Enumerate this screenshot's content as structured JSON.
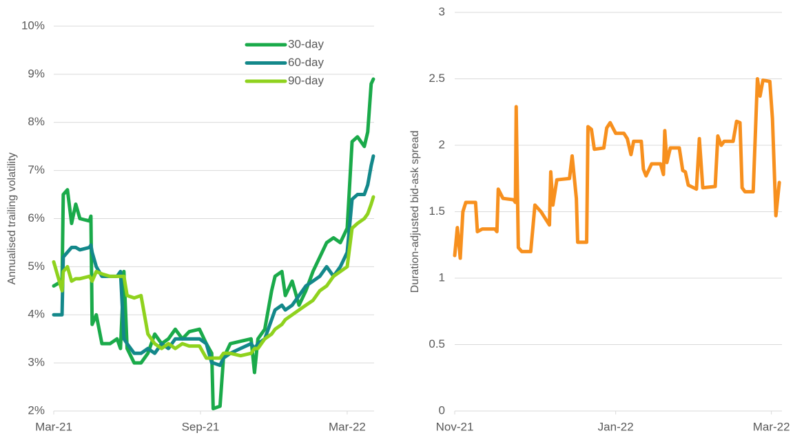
{
  "chart_data": [
    {
      "type": "line",
      "ylabel": "Annualised trailing volatility",
      "x": [
        0,
        0.34,
        0.39,
        0.56,
        0.73,
        0.9,
        1.07,
        1.46,
        1.52,
        1.57,
        1.74,
        1.97,
        2.3,
        2.59,
        2.73,
        2.87,
        3.0,
        3.29,
        3.57,
        3.85,
        4.13,
        4.41,
        4.69,
        4.97,
        5.26,
        5.54,
        5.96,
        6.24,
        6.46,
        6.52,
        6.8,
        6.94,
        7.22,
        7.64,
        8.07,
        8.21,
        8.35,
        8.63,
        8.91,
        9.05,
        9.33,
        9.47,
        9.75,
        10.03,
        10.31,
        10.6,
        10.88,
        11.16,
        11.44,
        11.72,
        12.0,
        12.2,
        12.42,
        12.7,
        12.84,
        12.98,
        13.07
      ],
      "series": [
        {
          "name": "30-day",
          "color": "#1aaa4a",
          "values": [
            4.6,
            4.7,
            6.5,
            6.6,
            5.9,
            6.3,
            6.0,
            5.95,
            6.05,
            3.8,
            4.0,
            3.4,
            3.4,
            3.5,
            3.3,
            4.9,
            3.3,
            3.0,
            3.0,
            3.2,
            3.6,
            3.4,
            3.5,
            3.7,
            3.5,
            3.65,
            3.7,
            3.4,
            3.2,
            2.05,
            2.1,
            3.1,
            3.4,
            3.45,
            3.5,
            2.8,
            3.5,
            3.7,
            4.5,
            4.8,
            4.9,
            4.4,
            4.7,
            4.2,
            4.5,
            4.9,
            5.2,
            5.5,
            5.6,
            5.5,
            5.8,
            7.6,
            7.7,
            7.5,
            7.8,
            8.8,
            8.9
          ]
        },
        {
          "name": "60-day",
          "color": "#13888a",
          "values": [
            4.0,
            4.0,
            5.2,
            5.3,
            5.4,
            5.4,
            5.35,
            5.4,
            5.45,
            5.3,
            5.0,
            4.8,
            4.8,
            4.8,
            4.9,
            3.5,
            3.4,
            3.2,
            3.2,
            3.3,
            3.2,
            3.4,
            3.3,
            3.5,
            3.5,
            3.5,
            3.5,
            3.4,
            3.0,
            3.0,
            2.95,
            3.1,
            3.2,
            3.3,
            3.4,
            3.3,
            3.4,
            3.5,
            3.9,
            4.1,
            4.2,
            4.1,
            4.2,
            4.4,
            4.6,
            4.7,
            4.8,
            5.0,
            4.8,
            5.0,
            5.3,
            6.4,
            6.5,
            6.5,
            6.7,
            7.1,
            7.3
          ]
        },
        {
          "name": "90-day",
          "color": "#8fd21e",
          "values": [
            5.1,
            4.5,
            4.9,
            5.0,
            4.7,
            4.75,
            4.75,
            4.8,
            4.75,
            4.7,
            4.9,
            4.85,
            4.8,
            4.8,
            4.8,
            4.8,
            4.4,
            4.35,
            4.4,
            3.6,
            3.4,
            3.3,
            3.4,
            3.3,
            3.4,
            3.35,
            3.35,
            3.1,
            3.1,
            3.1,
            3.1,
            3.2,
            3.2,
            3.15,
            3.2,
            3.3,
            3.3,
            3.5,
            3.6,
            3.7,
            3.8,
            3.9,
            4.0,
            4.1,
            4.2,
            4.3,
            4.5,
            4.6,
            4.8,
            4.9,
            5.0,
            5.8,
            5.9,
            6.0,
            6.1,
            6.3,
            6.45
          ]
        }
      ],
      "xlim": [
        0,
        13.1
      ],
      "xticks": [
        {
          "value": 0,
          "label": "Mar-21"
        },
        {
          "value": 6,
          "label": "Sep-21"
        },
        {
          "value": 12,
          "label": "Mar-22"
        }
      ],
      "ylim": [
        2,
        10
      ],
      "yticks": [
        {
          "value": 2,
          "label": "2%"
        },
        {
          "value": 3,
          "label": "3%"
        },
        {
          "value": 4,
          "label": "4%"
        },
        {
          "value": 5,
          "label": "5%"
        },
        {
          "value": 6,
          "label": "6%"
        },
        {
          "value": 7,
          "label": "7%"
        },
        {
          "value": 8,
          "label": "8%"
        },
        {
          "value": 9,
          "label": "9%"
        },
        {
          "value": 10,
          "label": "10%"
        }
      ],
      "grid": true,
      "legend": "upper right"
    },
    {
      "type": "line",
      "ylabel": "Duration-adjusted bid-ask spread",
      "x": [
        0,
        1.0,
        2.1,
        3.1,
        4.2,
        7.9,
        8.6,
        10.5,
        15.2,
        16.0,
        16.5,
        18.3,
        22.3,
        23.0,
        23.3,
        24.1,
        25.4,
        28.8,
        30.4,
        32.7,
        35.9,
        36.4,
        37.2,
        38.7,
        43.5,
        44.5,
        46.1,
        46.6,
        50.0,
        50.5,
        51.8,
        52.9,
        56.5,
        57.6,
        58.9,
        61.0,
        64.1,
        65.4,
        66.8,
        67.8,
        70.7,
        71.5,
        72.5,
        74.6,
        78.0,
        79.1,
        79.6,
        80.4,
        81.7,
        85.1,
        86.4,
        87.4,
        88.5,
        91.6,
        92.7,
        94.0,
        98.7,
        99.7,
        101.0,
        102.1,
        105.5,
        106.8,
        108.1,
        108.9,
        110.0,
        113.1,
        114.7,
        115.7,
        116.8,
        119.4,
        120.4,
        121.7,
        123.0
      ],
      "series": [
        {
          "color": "#f7901e",
          "values": [
            1.17,
            1.38,
            1.15,
            1.5,
            1.57,
            1.57,
            1.35,
            1.37,
            1.37,
            1.35,
            1.67,
            1.6,
            1.59,
            1.57,
            2.29,
            1.23,
            1.2,
            1.2,
            1.55,
            1.5,
            1.4,
            1.8,
            1.55,
            1.74,
            1.75,
            1.92,
            1.6,
            1.27,
            1.27,
            2.14,
            2.12,
            1.97,
            1.98,
            2.13,
            2.17,
            2.09,
            2.09,
            2.05,
            1.93,
            2.03,
            2.03,
            1.82,
            1.77,
            1.86,
            1.86,
            1.78,
            2.11,
            1.87,
            1.98,
            1.98,
            1.81,
            1.8,
            1.7,
            1.67,
            2.05,
            1.68,
            1.69,
            2.07,
            2.0,
            2.03,
            2.03,
            2.18,
            2.17,
            1.68,
            1.65,
            1.65,
            2.5,
            2.37,
            2.49,
            2.48,
            2.2,
            1.47,
            1.72
          ]
        }
      ],
      "xlim": [
        0,
        124
      ],
      "xticks": [
        {
          "value": 0,
          "label": "Nov-21"
        },
        {
          "value": 61,
          "label": "Jan-22"
        },
        {
          "value": 120,
          "label": "Mar-22"
        }
      ],
      "ylim": [
        0,
        3
      ],
      "yticks": [
        0,
        0.5,
        1,
        1.5,
        2,
        2.5,
        3
      ],
      "grid": true
    }
  ]
}
